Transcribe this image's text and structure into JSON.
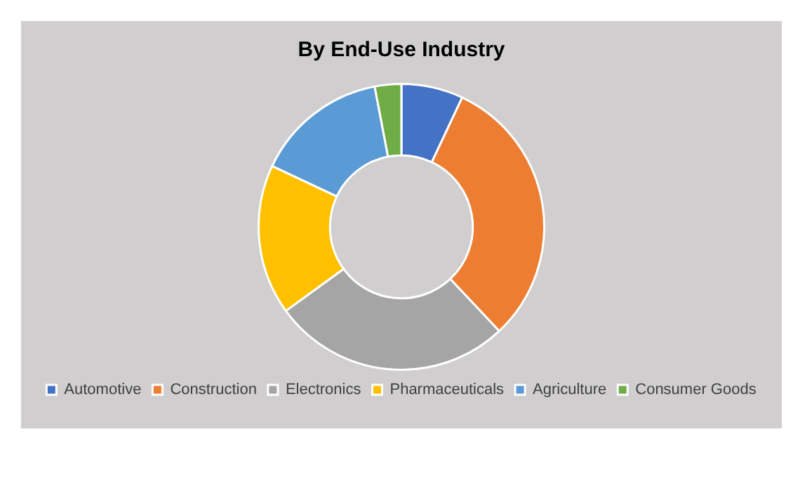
{
  "chart_data": {
    "type": "donut",
    "title": "By End-Use Industry",
    "categories": [
      "Automotive",
      "Construction",
      "Electronics",
      "Pharmaceuticals",
      "Agriculture",
      "Consumer Goods"
    ],
    "values": [
      7,
      31,
      27,
      17,
      15,
      3
    ],
    "colors": [
      "#4472c4",
      "#ed7d31",
      "#a5a5a5",
      "#ffc000",
      "#5b9bd5",
      "#70ad47"
    ],
    "legend": "bottom"
  }
}
